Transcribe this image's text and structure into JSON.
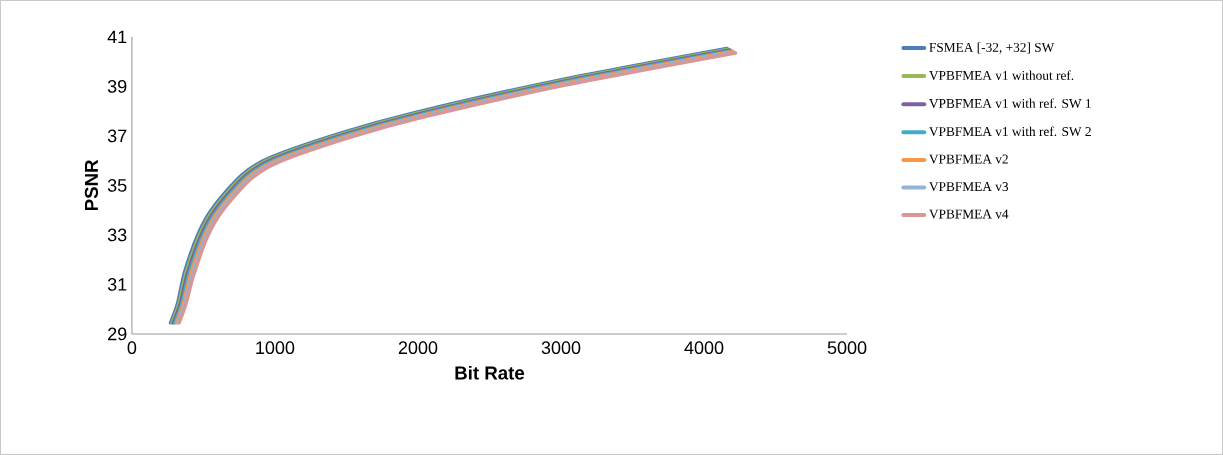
{
  "chart_data": {
    "type": "line",
    "xlabel": "Bit Rate",
    "ylabel": "PSNR",
    "xlim": [
      0,
      5000
    ],
    "xticks": [
      0,
      1000,
      2000,
      3000,
      4000,
      5000
    ],
    "ylim": [
      29,
      41
    ],
    "yticks": [
      29,
      31,
      33,
      35,
      37,
      39,
      41
    ],
    "grid": false,
    "legend": "right",
    "marker": "none",
    "line_style": "solid",
    "series": [
      {
        "name": "FSMEA [-32, +32] SW",
        "color": "#4a7ebb",
        "x": [
          270,
          320,
          370,
          470,
          570,
          770,
          970,
          1470,
          1970,
          2970,
          4160
        ],
        "values": [
          29.45,
          30.25,
          31.53,
          33.13,
          34.13,
          35.43,
          36.13,
          37.13,
          37.93,
          39.23,
          40.53
        ]
      },
      {
        "name": "VPBFMEA v1 without ref.",
        "color": "#98b954",
        "x": [
          280,
          330,
          380,
          480,
          580,
          780,
          980,
          1480,
          1980,
          2980,
          4170
        ],
        "values": [
          29.45,
          30.25,
          31.5,
          33.1,
          34.1,
          35.4,
          36.1,
          37.1,
          37.9,
          39.2,
          40.5
        ]
      },
      {
        "name": "VPBFMEA v1 with ref. SW 1",
        "color": "#7d60a0",
        "x": [
          290,
          340,
          390,
          490,
          590,
          790,
          990,
          1490,
          1990,
          2990,
          4180
        ],
        "values": [
          29.45,
          30.25,
          31.47,
          33.07,
          34.07,
          35.37,
          36.07,
          37.07,
          37.87,
          39.17,
          40.47
        ]
      },
      {
        "name": "VPBFMEA v1 with ref. SW 2",
        "color": "#46aac5",
        "x": [
          300,
          350,
          400,
          500,
          600,
          800,
          1000,
          1500,
          2000,
          3000,
          4190
        ],
        "values": [
          29.45,
          30.25,
          31.44,
          33.04,
          34.04,
          35.34,
          36.04,
          37.04,
          37.84,
          39.14,
          40.44
        ]
      },
      {
        "name": "VPBFMEA v2",
        "color": "#f79646",
        "x": [
          310,
          360,
          410,
          510,
          610,
          810,
          1010,
          1510,
          2010,
          3010,
          4200
        ],
        "values": [
          29.45,
          30.25,
          31.41,
          33.01,
          34.01,
          35.31,
          36.01,
          37.01,
          37.81,
          39.11,
          40.41
        ]
      },
      {
        "name": "VPBFMEA v3",
        "color": "#95b3d7",
        "x": [
          320,
          370,
          420,
          520,
          620,
          820,
          1020,
          1520,
          2020,
          3020,
          4210
        ],
        "values": [
          29.45,
          30.25,
          31.38,
          32.98,
          33.98,
          35.28,
          35.98,
          36.98,
          37.78,
          39.08,
          40.38
        ]
      },
      {
        "name": "VPBFMEA v4",
        "color": "#d99694",
        "x": [
          330,
          380,
          430,
          530,
          630,
          830,
          1030,
          1530,
          2030,
          3030,
          4220
        ],
        "values": [
          29.45,
          30.25,
          31.35,
          32.95,
          33.95,
          35.25,
          35.95,
          36.95,
          37.75,
          39.05,
          40.35
        ]
      }
    ]
  }
}
